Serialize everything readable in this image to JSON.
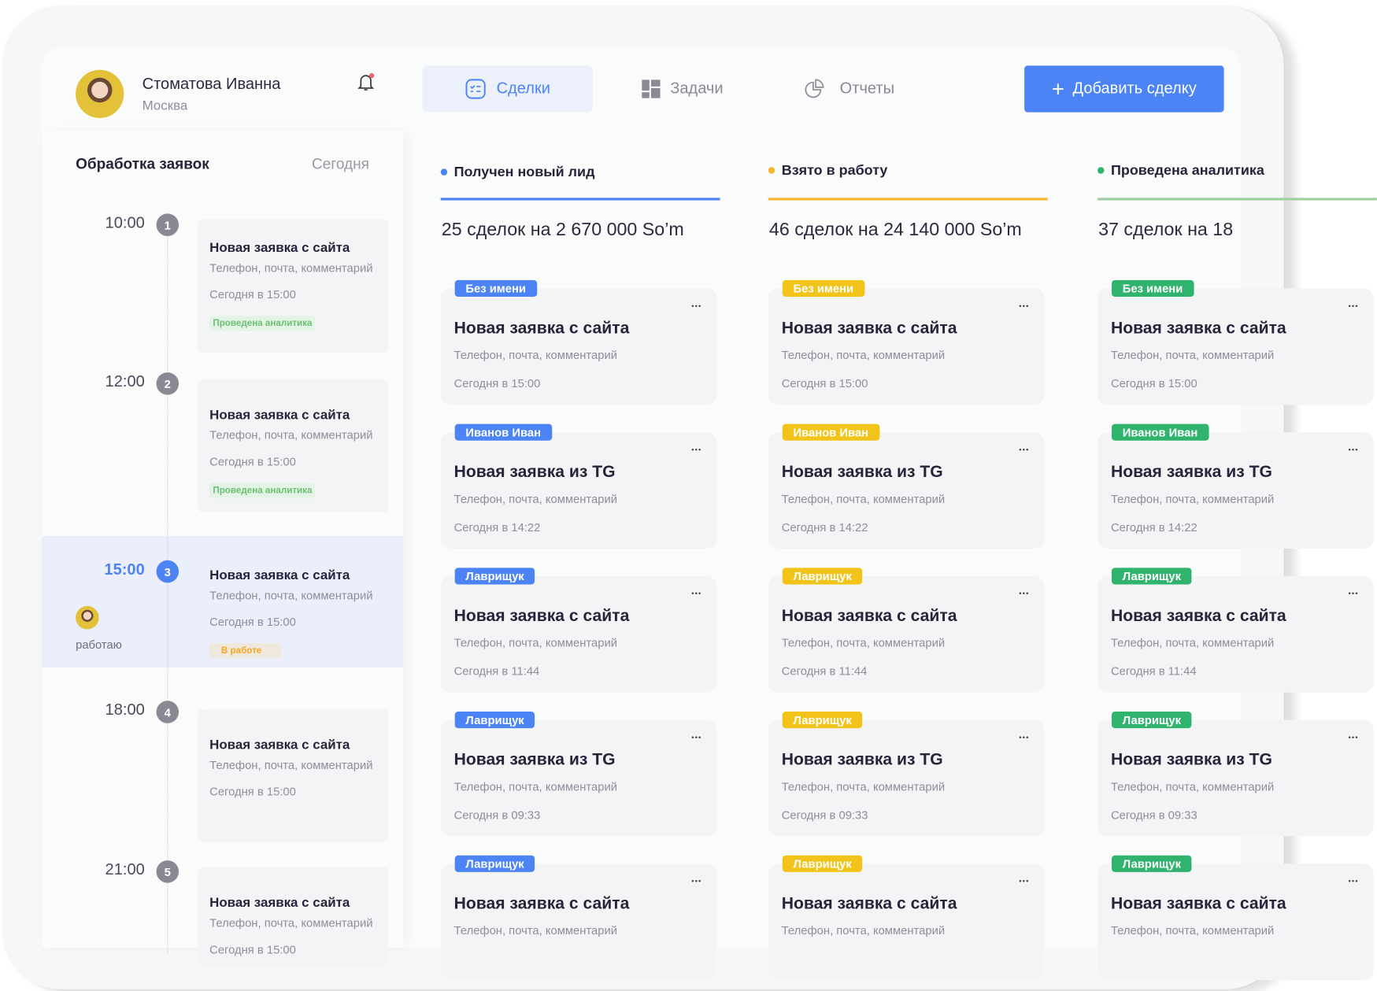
{
  "user": {
    "name": "Стоматова Иванна",
    "city": "Москва"
  },
  "tabs": [
    {
      "label": "Сделки",
      "icon": "checklist-icon",
      "active": true
    },
    {
      "label": "Задачи",
      "icon": "grid-icon"
    },
    {
      "label": "Отчеты",
      "icon": "pie-chart-icon"
    }
  ],
  "add_button": {
    "label": "Добавить сделку",
    "icon": "plus-icon"
  },
  "timeline": {
    "title": "Обработка заявок",
    "date_filter": "Сегодня",
    "items": [
      {
        "time": "10:00",
        "num": "1",
        "title": "Новая заявка с сайта",
        "sub": "Телефон, почта, комментарий",
        "date": "Сегодня в 15:00",
        "tag": "Проведена аналитика"
      },
      {
        "time": "12:00",
        "num": "2",
        "title": "Новая заявка с сайта",
        "sub": "Телефон, почта, комментарий",
        "date": "Сегодня в 15:00",
        "tag": "Проведена аналитика"
      },
      {
        "time": "15:00",
        "num": "3",
        "title": "Новая заявка с сайта",
        "sub": "Телефон, почта, комментарий",
        "date": "Сегодня в 15:00",
        "tag": "В работе",
        "current": true,
        "status": "работаю"
      },
      {
        "time": "18:00",
        "num": "4",
        "title": "Новая заявка с сайта",
        "sub": "Телефон, почта, комментарий",
        "date": "Сегодня в 15:00"
      },
      {
        "time": "21:00",
        "num": "5",
        "title": "Новая заявка с сайта",
        "sub": "Телефон, почта, комментарий",
        "date": "Сегодня в 15:00"
      }
    ]
  },
  "columns": [
    {
      "title": "Получен новый лид",
      "summary": "25 сделок на 2 670 000 So’m",
      "color": "#4c84f5"
    },
    {
      "title": "Взято в  работу",
      "summary": "46 сделок на 24 140 000 So’m",
      "color": "#f5b731",
      "tag_color": "#f2c41a"
    },
    {
      "title": "Проведена аналитика",
      "summary": "37 сделок на 18",
      "color": "#2fb36d",
      "line_color": "#9fcf9f"
    }
  ],
  "deals": [
    {
      "tag": "Без имени",
      "title": "Новая заявка с сайта",
      "sub": "Телефон, почта, комментарий",
      "date": "Сегодня в 15:00"
    },
    {
      "tag": "Иванов Иван",
      "title": "Новая заявка из TG",
      "sub": "Телефон, почта, комментарий",
      "date": "Сегодня в 14:22"
    },
    {
      "tag": "Лаврищук",
      "title": "Новая заявка с сайта",
      "sub": "Телефон, почта, комментарий",
      "date": "Сегодня в 11:44"
    },
    {
      "tag": "Лаврищук",
      "title": "Новая заявка из TG",
      "sub": "Телефон, почта, комментарий",
      "date": "Сегодня в 09:33"
    },
    {
      "tag": "Лаврищук",
      "title": "Новая заявка с сайта",
      "sub": "Телефон, почта, комментарий",
      "date": ""
    }
  ]
}
